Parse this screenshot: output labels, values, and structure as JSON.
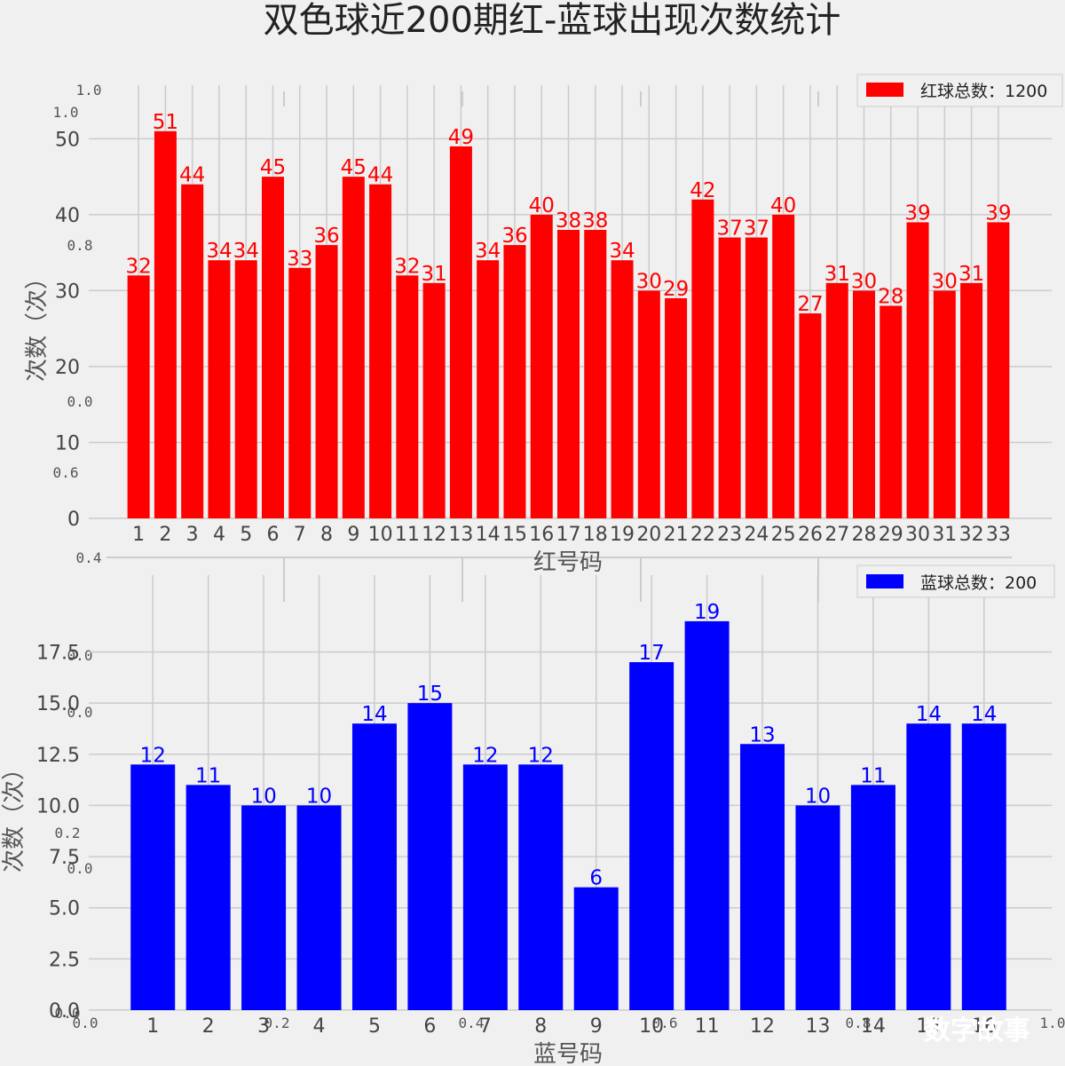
{
  "title": "双色球近200期红-蓝球出现次数统计",
  "watermark": "数字故事",
  "background_axis": {
    "ticks_y": [
      "1.0",
      "0.8",
      "0.6",
      "0.4",
      "0.2",
      "0.0"
    ],
    "ticks_x": [
      "0.0",
      "0.2",
      "0.4",
      "0.6",
      "0.8",
      "1.0"
    ]
  },
  "chart_data": [
    {
      "type": "bar",
      "legend": "红球总数：1200",
      "legend_position": "top-right",
      "color": "#ff0000",
      "xlabel": "红号码",
      "ylabel": "次数（次）",
      "ylim": [
        0,
        53.55
      ],
      "yticks": [
        0,
        10,
        20,
        30,
        40,
        50
      ],
      "grid": true,
      "categories": [
        "1",
        "2",
        "3",
        "4",
        "5",
        "6",
        "7",
        "8",
        "9",
        "10",
        "11",
        "12",
        "13",
        "14",
        "15",
        "16",
        "17",
        "18",
        "19",
        "20",
        "21",
        "22",
        "23",
        "24",
        "25",
        "26",
        "27",
        "28",
        "29",
        "30",
        "31",
        "32",
        "33"
      ],
      "values": [
        32,
        51,
        44,
        34,
        34,
        45,
        33,
        36,
        45,
        44,
        32,
        31,
        49,
        34,
        36,
        40,
        38,
        38,
        34,
        30,
        29,
        42,
        37,
        37,
        40,
        27,
        31,
        30,
        28,
        39,
        30,
        31,
        39
      ]
    },
    {
      "type": "bar",
      "legend": "蓝球总数：200",
      "legend_position": "top-right",
      "color": "#0000ff",
      "xlabel": "蓝号码",
      "ylabel": "次数（次）",
      "ylim": [
        0,
        19.95
      ],
      "yticks": [
        0,
        2.5,
        5,
        7.5,
        10,
        12.5,
        15,
        17.5
      ],
      "grid": true,
      "categories": [
        "1",
        "2",
        "3",
        "4",
        "5",
        "6",
        "7",
        "8",
        "9",
        "10",
        "11",
        "12",
        "13",
        "14",
        "15",
        "16"
      ],
      "values": [
        12,
        11,
        10,
        10,
        14,
        15,
        12,
        12,
        6,
        17,
        19,
        13,
        10,
        11,
        14,
        14
      ]
    }
  ]
}
